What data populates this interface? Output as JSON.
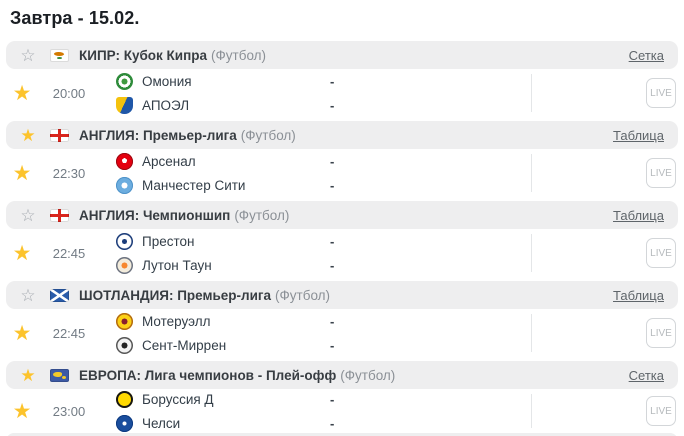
{
  "page_title": "Завтра - 15.02.",
  "live_label": "LIVE",
  "colors": {
    "star_filled": "#fcc32c",
    "star_outline": "#a6abb1",
    "header_bg": "#eeeeef",
    "link_text": "#5f656a",
    "team_text": "#333e48"
  },
  "sections": [
    {
      "league": "КИПР: Кубок Кипра",
      "sport": "(Футбол)",
      "link": "Сетка",
      "flag_icon": "cyprus-flag-icon",
      "header_starred": false,
      "match": {
        "starred": true,
        "time": "20:00",
        "teams": [
          {
            "name": "Омония",
            "logo_icon": "omonia-logo-icon",
            "score": "-"
          },
          {
            "name": "АПОЭЛ",
            "logo_icon": "apoel-logo-icon",
            "score": "-"
          }
        ]
      }
    },
    {
      "league": "АНГЛИЯ: Премьер-лига",
      "sport": "(Футбол)",
      "link": "Таблица",
      "flag_icon": "england-flag-icon",
      "header_starred": true,
      "match": {
        "starred": true,
        "time": "22:30",
        "teams": [
          {
            "name": "Арсенал",
            "logo_icon": "arsenal-logo-icon",
            "score": "-"
          },
          {
            "name": "Манчестер Сити",
            "logo_icon": "manchester-city-logo-icon",
            "score": "-"
          }
        ]
      }
    },
    {
      "league": "АНГЛИЯ: Чемпионшип",
      "sport": "(Футбол)",
      "link": "Таблица",
      "flag_icon": "england-flag-icon",
      "header_starred": false,
      "match": {
        "starred": true,
        "time": "22:45",
        "teams": [
          {
            "name": "Престон",
            "logo_icon": "preston-logo-icon",
            "score": "-"
          },
          {
            "name": "Лутон Таун",
            "logo_icon": "luton-town-logo-icon",
            "score": "-"
          }
        ]
      }
    },
    {
      "league": "ШОТЛАНДИЯ: Премьер-лига",
      "sport": "(Футбол)",
      "link": "Таблица",
      "flag_icon": "scotland-flag-icon",
      "header_starred": false,
      "match": {
        "starred": true,
        "time": "22:45",
        "teams": [
          {
            "name": "Мотеруэлл",
            "logo_icon": "motherwell-logo-icon",
            "score": "-"
          },
          {
            "name": "Сент-Миррен",
            "logo_icon": "st-mirren-logo-icon",
            "score": "-"
          }
        ]
      }
    },
    {
      "league": "ЕВРОПА: Лига чемпионов - Плей-офф",
      "sport": "(Футбол)",
      "link": "Сетка",
      "flag_icon": "europe-flag-icon",
      "header_starred": true,
      "match": {
        "starred": true,
        "time": "23:00",
        "teams": [
          {
            "name": "Боруссия Д",
            "logo_icon": "borussia-dortmund-logo-icon",
            "score": "-"
          },
          {
            "name": "Челси",
            "logo_icon": "chelsea-logo-icon",
            "score": "-"
          }
        ]
      }
    }
  ]
}
